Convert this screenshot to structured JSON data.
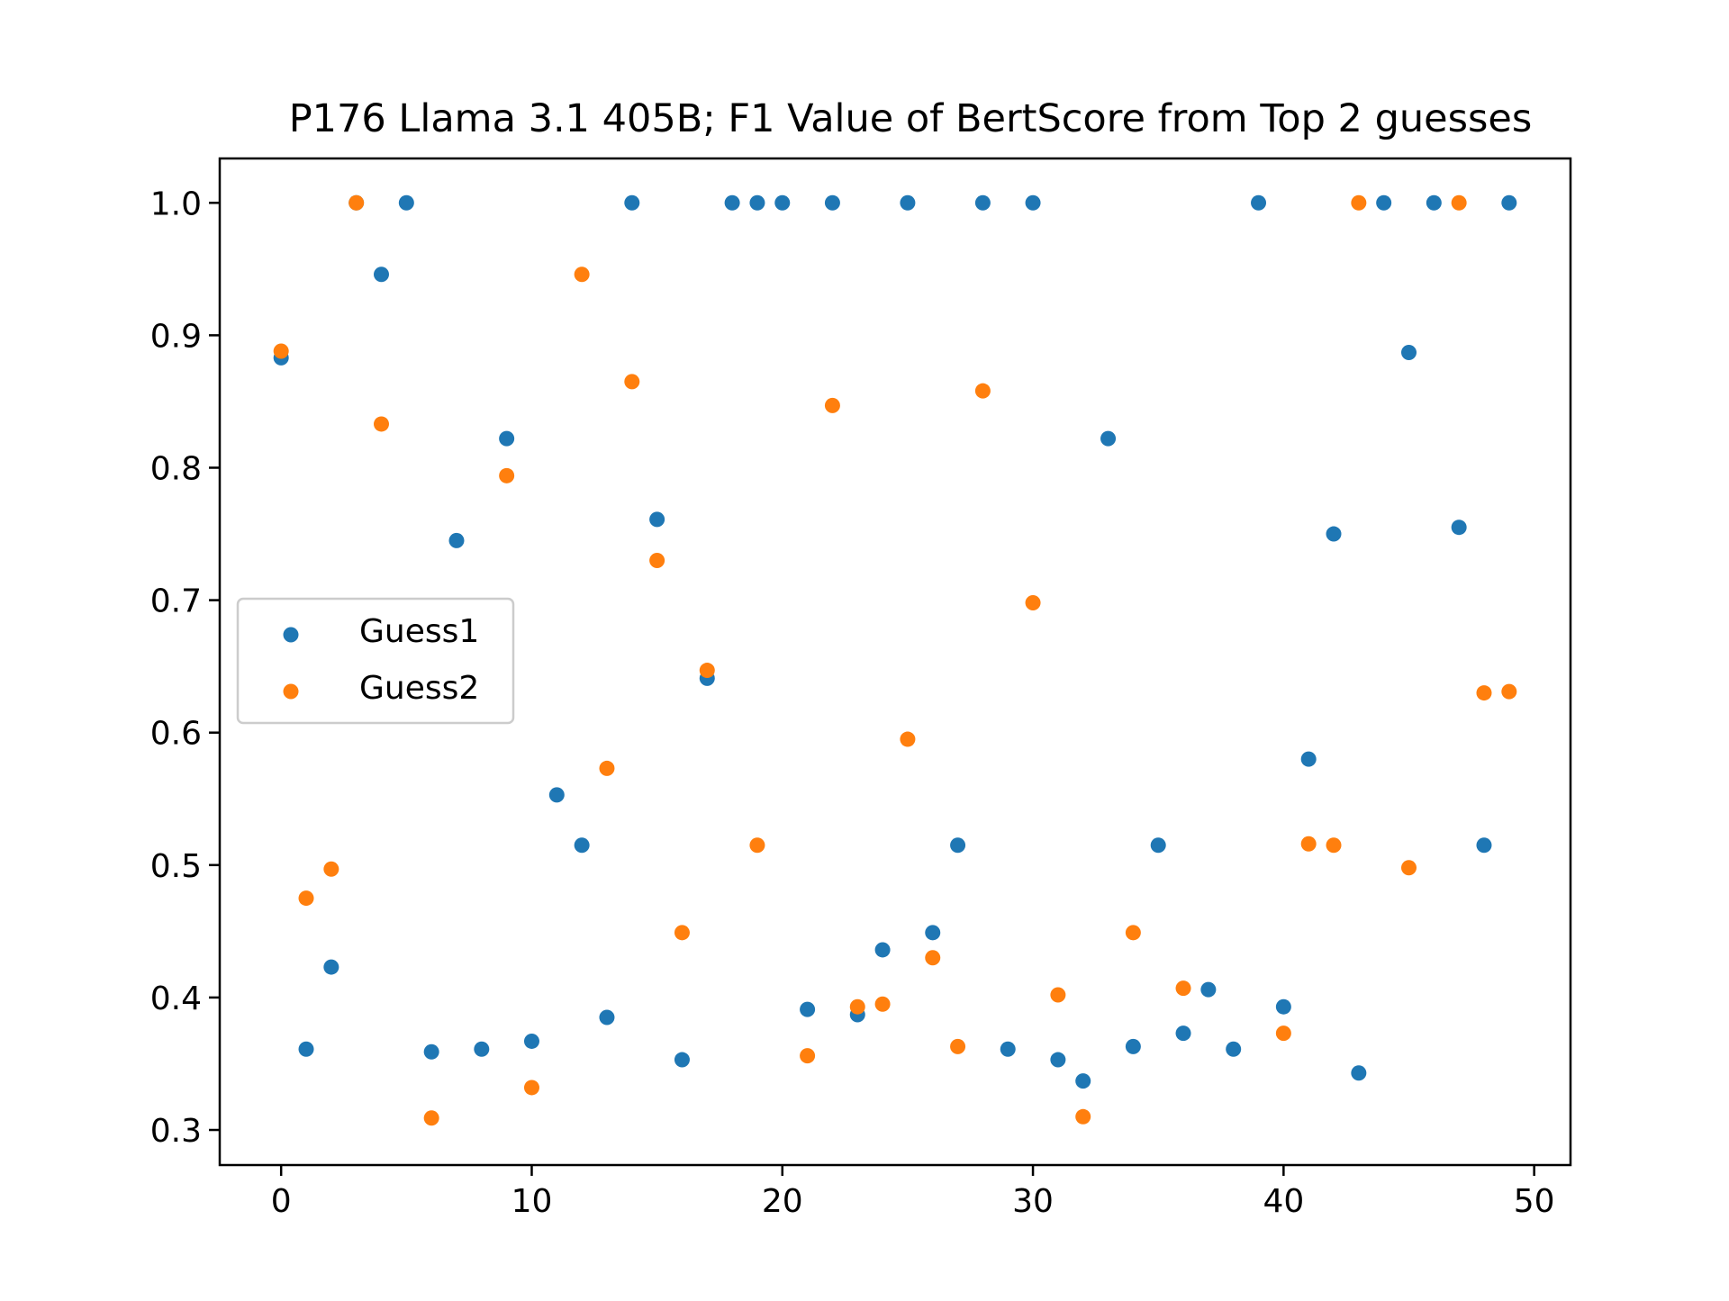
{
  "chart_data": {
    "type": "scatter",
    "title": "P176 Llama 3.1 405B; F1 Value of BertScore from Top 2 guesses",
    "xlabel": "",
    "ylabel": "",
    "xlim": [
      -2.45,
      51.45
    ],
    "ylim": [
      0.2735,
      1.0335
    ],
    "xticks": [
      0,
      10,
      20,
      30,
      40,
      50
    ],
    "yticks": [
      0.3,
      0.4,
      0.5,
      0.6,
      0.7,
      0.8,
      0.9,
      1.0
    ],
    "xtick_labels": [
      "0",
      "10",
      "20",
      "30",
      "40",
      "50"
    ],
    "ytick_labels": [
      "0.3",
      "0.4",
      "0.5",
      "0.6",
      "0.7",
      "0.8",
      "0.9",
      "1.0"
    ],
    "grid": false,
    "legend_position": "center-left",
    "x": [
      0,
      1,
      2,
      3,
      4,
      5,
      6,
      7,
      8,
      9,
      10,
      11,
      12,
      13,
      14,
      15,
      16,
      17,
      18,
      19,
      20,
      21,
      22,
      23,
      24,
      25,
      26,
      27,
      28,
      29,
      30,
      31,
      32,
      33,
      34,
      35,
      36,
      37,
      38,
      39,
      40,
      41,
      42,
      43,
      44,
      45,
      46,
      47,
      48,
      49
    ],
    "series": [
      {
        "name": "Guess1",
        "color": "#1f77b4",
        "values": [
          0.883,
          0.361,
          0.423,
          1.0,
          0.946,
          1.0,
          0.359,
          0.745,
          0.361,
          0.822,
          0.367,
          0.553,
          0.515,
          0.385,
          1.0,
          0.761,
          0.353,
          0.641,
          1.0,
          1.0,
          1.0,
          0.391,
          1.0,
          0.387,
          0.436,
          1.0,
          0.449,
          0.515,
          1.0,
          0.361,
          1.0,
          0.353,
          0.337,
          0.822,
          0.363,
          0.515,
          0.373,
          0.406,
          0.361,
          1.0,
          0.393,
          0.58,
          0.75,
          0.343,
          1.0,
          0.887,
          1.0,
          0.755,
          0.515,
          1.0
        ]
      },
      {
        "name": "Guess2",
        "color": "#ff7f0e",
        "values": [
          0.888,
          0.475,
          0.497,
          1.0,
          0.833,
          null,
          0.309,
          null,
          null,
          0.794,
          0.332,
          null,
          0.946,
          0.573,
          0.865,
          0.73,
          0.449,
          0.647,
          null,
          0.515,
          null,
          0.356,
          0.847,
          0.393,
          0.395,
          0.595,
          0.43,
          0.363,
          0.858,
          null,
          0.698,
          0.402,
          0.31,
          null,
          0.449,
          null,
          0.407,
          null,
          null,
          null,
          0.373,
          0.516,
          0.515,
          1.0,
          null,
          0.498,
          null,
          1.0,
          0.63,
          0.631
        ]
      }
    ]
  }
}
